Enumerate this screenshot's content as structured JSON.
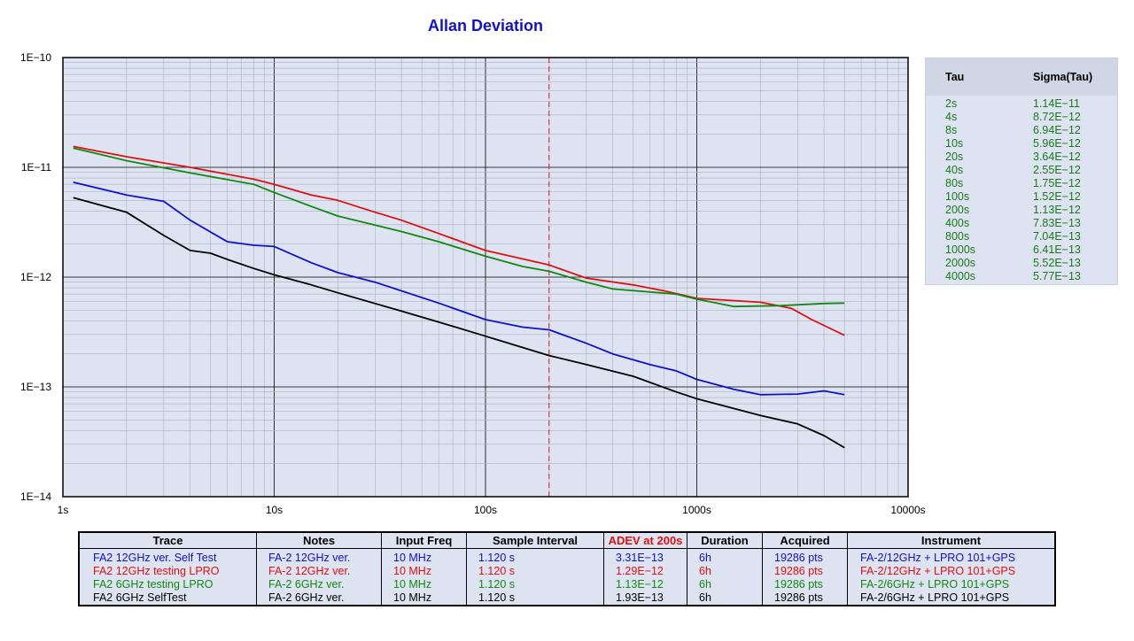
{
  "chart_data": {
    "type": "line",
    "title": "Allan Deviation",
    "x_scale": "log",
    "y_scale": "log",
    "xlim": [
      1,
      10000
    ],
    "ylim": [
      1e-14,
      1e-10
    ],
    "x_tick_labels": [
      "1s",
      "10s",
      "100s",
      "1000s",
      "10000s"
    ],
    "y_tick_labels": [
      "1E−10",
      "1E−11",
      "1E−12",
      "1E−13",
      "1E−14"
    ],
    "grid": true,
    "marker_line": {
      "x": 200,
      "color": "#dd1111",
      "style": "dashed"
    },
    "series": [
      {
        "name": "FA2 12GHz ver. Self Test",
        "color": "#1111cc",
        "points": [
          [
            1.12,
            7.3e-12
          ],
          [
            2,
            5.6e-12
          ],
          [
            3,
            4.9e-12
          ],
          [
            4,
            3.3e-12
          ],
          [
            6,
            2.1e-12
          ],
          [
            8,
            1.95e-12
          ],
          [
            10,
            1.9e-12
          ],
          [
            15,
            1.35e-12
          ],
          [
            20,
            1.1e-12
          ],
          [
            30,
            9e-13
          ],
          [
            40,
            7.5e-13
          ],
          [
            60,
            5.8e-13
          ],
          [
            100,
            4.1e-13
          ],
          [
            150,
            3.5e-13
          ],
          [
            200,
            3.31e-13
          ],
          [
            300,
            2.5e-13
          ],
          [
            400,
            2e-13
          ],
          [
            600,
            1.6e-13
          ],
          [
            800,
            1.4e-13
          ],
          [
            1000,
            1.17e-13
          ],
          [
            1500,
            9.5e-14
          ],
          [
            2000,
            8.5e-14
          ],
          [
            3000,
            8.6e-14
          ],
          [
            4000,
            9.2e-14
          ],
          [
            5000,
            8.5e-14
          ]
        ]
      },
      {
        "name": "FA2 12GHz testing LPRO",
        "color": "#dd1111",
        "points": [
          [
            1.12,
            1.55e-11
          ],
          [
            2,
            1.25e-11
          ],
          [
            4,
            1e-11
          ],
          [
            8,
            7.8e-12
          ],
          [
            10,
            7e-12
          ],
          [
            15,
            5.6e-12
          ],
          [
            20,
            5e-12
          ],
          [
            30,
            3.9e-12
          ],
          [
            40,
            3.3e-12
          ],
          [
            60,
            2.5e-12
          ],
          [
            100,
            1.75e-12
          ],
          [
            200,
            1.29e-12
          ],
          [
            300,
            9.8e-13
          ],
          [
            500,
            8.5e-13
          ],
          [
            700,
            7.5e-13
          ],
          [
            1000,
            6.4e-13
          ],
          [
            2000,
            5.9e-13
          ],
          [
            2800,
            5.2e-13
          ],
          [
            3500,
            4.1e-13
          ],
          [
            5000,
            2.95e-13
          ]
        ]
      },
      {
        "name": "FA2 6GHz testing LPRO",
        "color": "#118811",
        "points": [
          [
            1.12,
            1.5e-11
          ],
          [
            2,
            1.15e-11
          ],
          [
            4,
            8.9e-12
          ],
          [
            8,
            7e-12
          ],
          [
            10,
            5.9e-12
          ],
          [
            15,
            4.4e-12
          ],
          [
            20,
            3.6e-12
          ],
          [
            40,
            2.6e-12
          ],
          [
            60,
            2.1e-12
          ],
          [
            100,
            1.55e-12
          ],
          [
            150,
            1.25e-12
          ],
          [
            200,
            1.13e-12
          ],
          [
            300,
            9e-13
          ],
          [
            400,
            7.8e-13
          ],
          [
            800,
            7e-13
          ],
          [
            1000,
            6.3e-13
          ],
          [
            1500,
            5.4e-13
          ],
          [
            2500,
            5.5e-13
          ],
          [
            4000,
            5.75e-13
          ],
          [
            5000,
            5.8e-13
          ]
        ]
      },
      {
        "name": "FA2 6GHz SelfTest",
        "color": "#000000",
        "points": [
          [
            1.12,
            5.3e-12
          ],
          [
            2,
            3.9e-12
          ],
          [
            3,
            2.4e-12
          ],
          [
            4,
            1.75e-12
          ],
          [
            5,
            1.65e-12
          ],
          [
            6,
            1.45e-12
          ],
          [
            8,
            1.2e-12
          ],
          [
            10,
            1.05e-12
          ],
          [
            15,
            8.5e-13
          ],
          [
            20,
            7.2e-13
          ],
          [
            40,
            4.9e-13
          ],
          [
            60,
            3.9e-13
          ],
          [
            100,
            2.9e-13
          ],
          [
            200,
            1.93e-13
          ],
          [
            300,
            1.6e-13
          ],
          [
            500,
            1.25e-13
          ],
          [
            800,
            9e-14
          ],
          [
            1000,
            7.8e-14
          ],
          [
            2000,
            5.5e-14
          ],
          [
            3000,
            4.6e-14
          ],
          [
            4000,
            3.6e-14
          ],
          [
            5000,
            2.8e-14
          ]
        ]
      }
    ]
  },
  "sigma_table": {
    "headers": {
      "tau": "Tau",
      "sigma": "Sigma(Tau)"
    },
    "rows": [
      {
        "tau": "2s",
        "sigma": "1.14E−11"
      },
      {
        "tau": "4s",
        "sigma": "8.72E−12"
      },
      {
        "tau": "8s",
        "sigma": "6.94E−12"
      },
      {
        "tau": "10s",
        "sigma": "5.96E−12"
      },
      {
        "tau": "20s",
        "sigma": "3.64E−12"
      },
      {
        "tau": "40s",
        "sigma": "2.55E−12"
      },
      {
        "tau": "80s",
        "sigma": "1.75E−12"
      },
      {
        "tau": "100s",
        "sigma": "1.52E−12"
      },
      {
        "tau": "200s",
        "sigma": "1.13E−12"
      },
      {
        "tau": "400s",
        "sigma": "7.83E−13"
      },
      {
        "tau": "800s",
        "sigma": "7.04E−13"
      },
      {
        "tau": "1000s",
        "sigma": "6.41E−13"
      },
      {
        "tau": "2000s",
        "sigma": "5.52E−13"
      },
      {
        "tau": "4000s",
        "sigma": "5.77E−13"
      }
    ]
  },
  "legend_table": {
    "headers": [
      "Trace",
      "Notes",
      "Input Freq",
      "Sample Interval",
      "ADEV at 200s",
      "Duration",
      "Acquired",
      "Instrument"
    ],
    "adev_header_color": "#dd1111",
    "rows": [
      {
        "color": "#1111cc",
        "cells": [
          "FA2 12GHz ver. Self Test",
          "FA-2 12GHz ver.",
          "10 MHz",
          "1.120 s",
          "3.31E−13",
          "6h",
          "19286 pts",
          "FA-2/12GHz + LPRO 101+GPS"
        ]
      },
      {
        "color": "#dd1111",
        "cells": [
          "FA2 12GHz testing LPRO",
          "FA-2 12GHz ver.",
          "10 MHz",
          "1.120 s",
          "1.29E−12",
          "6h",
          "19286 pts",
          "FA-2/12GHz + LPRO 101+GPS"
        ]
      },
      {
        "color": "#118811",
        "cells": [
          "FA2 6GHz testing LPRO",
          "FA-2 6GHz ver.",
          "10 MHz",
          "1.120 s",
          "1.13E−12",
          "6h",
          "19286 pts",
          "FA-2/6GHz + LPRO 101+GPS"
        ]
      },
      {
        "color": "#000000",
        "cells": [
          "FA2 6GHz SelfTest",
          "FA-2 6GHz ver.",
          "10 MHz",
          "1.120 s",
          "1.93E−13",
          "6h",
          "19286 pts",
          "FA-2/6GHz + LPRO 101+GPS"
        ]
      }
    ]
  }
}
